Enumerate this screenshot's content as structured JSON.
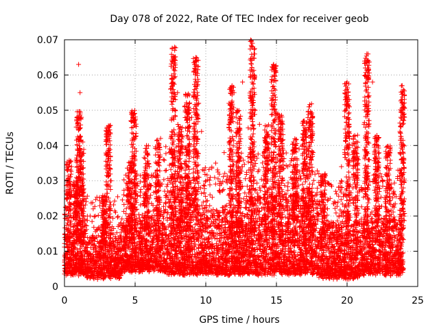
{
  "chart_data": {
    "type": "scatter",
    "title": "Day 078 of 2022, Rate Of TEC Index for receiver geob",
    "xlabel": "GPS time / hours",
    "ylabel": "ROTI / TECUs",
    "xlim": [
      0,
      25
    ],
    "ylim": [
      0,
      0.07
    ],
    "xticks": [
      "0",
      "5",
      "10",
      "15",
      "20",
      "25"
    ],
    "yticks": [
      "0",
      "0.01",
      "0.02",
      "0.03",
      "0.04",
      "0.05",
      "0.06",
      "0.07"
    ],
    "xtick_values": [
      0,
      5,
      10,
      15,
      20,
      25
    ],
    "ytick_values": [
      0,
      0.01,
      0.02,
      0.03,
      0.04,
      0.05,
      0.06,
      0.07
    ],
    "grid": true,
    "legend": "none",
    "marker": "plus",
    "series_color": "#ff0000",
    "points": [
      [
        0.1,
        0.008
      ],
      [
        0.2,
        0.011
      ],
      [
        0.3,
        0.006
      ],
      [
        0.4,
        0.018
      ],
      [
        0.5,
        0.034
      ],
      [
        0.6,
        0.029
      ],
      [
        0.7,
        0.012
      ],
      [
        0.8,
        0.009
      ],
      [
        0.9,
        0.022
      ],
      [
        1.0,
        0.063
      ],
      [
        1.1,
        0.055
      ],
      [
        1.2,
        0.048
      ],
      [
        1.3,
        0.041
      ],
      [
        1.4,
        0.014
      ],
      [
        1.6,
        0.01
      ],
      [
        1.8,
        0.007
      ],
      [
        2.0,
        0.012
      ],
      [
        2.2,
        0.009
      ],
      [
        2.5,
        0.008
      ],
      [
        2.7,
        0.024
      ],
      [
        2.9,
        0.021
      ],
      [
        3.1,
        0.044
      ],
      [
        3.2,
        0.038
      ],
      [
        3.3,
        0.03
      ],
      [
        3.5,
        0.011
      ],
      [
        3.8,
        0.009
      ],
      [
        4.0,
        0.014
      ],
      [
        4.2,
        0.026
      ],
      [
        4.5,
        0.031
      ],
      [
        4.7,
        0.047
      ],
      [
        4.8,
        0.049
      ],
      [
        5.0,
        0.042
      ],
      [
        5.2,
        0.018
      ],
      [
        5.5,
        0.013
      ],
      [
        5.8,
        0.04
      ],
      [
        6.0,
        0.034
      ],
      [
        6.2,
        0.02
      ],
      [
        6.5,
        0.025
      ],
      [
        6.8,
        0.042
      ],
      [
        7.0,
        0.036
      ],
      [
        7.3,
        0.029
      ],
      [
        7.5,
        0.056
      ],
      [
        7.7,
        0.062
      ],
      [
        7.8,
        0.067
      ],
      [
        8.0,
        0.055
      ],
      [
        8.2,
        0.045
      ],
      [
        8.5,
        0.051
      ],
      [
        8.7,
        0.038
      ],
      [
        9.0,
        0.048
      ],
      [
        9.2,
        0.063
      ],
      [
        9.3,
        0.065
      ],
      [
        9.5,
        0.052
      ],
      [
        9.7,
        0.044
      ],
      [
        10.0,
        0.03
      ],
      [
        10.3,
        0.026
      ],
      [
        10.7,
        0.035
      ],
      [
        11.0,
        0.027
      ],
      [
        11.3,
        0.038
      ],
      [
        11.7,
        0.047
      ],
      [
        12.0,
        0.055
      ],
      [
        12.2,
        0.05
      ],
      [
        12.6,
        0.058
      ],
      [
        13.0,
        0.045
      ],
      [
        13.3,
        0.069
      ],
      [
        13.5,
        0.05
      ],
      [
        13.8,
        0.046
      ],
      [
        14.2,
        0.041
      ],
      [
        14.5,
        0.037
      ],
      [
        14.8,
        0.063
      ],
      [
        15.1,
        0.049
      ],
      [
        15.4,
        0.04
      ],
      [
        15.8,
        0.034
      ],
      [
        16.2,
        0.041
      ],
      [
        16.6,
        0.039
      ],
      [
        17.0,
        0.045
      ],
      [
        17.3,
        0.051
      ],
      [
        17.6,
        0.038
      ],
      [
        18.0,
        0.032
      ],
      [
        18.4,
        0.03
      ],
      [
        18.8,
        0.025
      ],
      [
        19.2,
        0.027
      ],
      [
        19.6,
        0.034
      ],
      [
        19.9,
        0.053
      ],
      [
        20.0,
        0.058
      ],
      [
        20.1,
        0.049
      ],
      [
        20.4,
        0.04
      ],
      [
        20.8,
        0.036
      ],
      [
        21.2,
        0.046
      ],
      [
        21.4,
        0.066
      ],
      [
        21.5,
        0.062
      ],
      [
        21.8,
        0.058
      ],
      [
        22.1,
        0.042
      ],
      [
        22.5,
        0.03
      ],
      [
        22.9,
        0.038
      ],
      [
        23.3,
        0.027
      ],
      [
        23.6,
        0.033
      ],
      [
        23.8,
        0.048
      ],
      [
        23.9,
        0.057
      ],
      [
        24.0,
        0.051
      ],
      [
        24.0,
        0.035
      ]
    ],
    "bands": [
      {
        "x0": 0.0,
        "x1": 1.5,
        "ymin": 0.004,
        "ymax": 0.016,
        "density": 0.8
      },
      {
        "x0": 1.5,
        "x1": 4.0,
        "ymin": 0.003,
        "ymax": 0.014,
        "density": 0.72
      },
      {
        "x0": 4.0,
        "x1": 7.0,
        "ymin": 0.005,
        "ymax": 0.02,
        "density": 0.8
      },
      {
        "x0": 7.0,
        "x1": 9.5,
        "ymin": 0.004,
        "ymax": 0.028,
        "density": 0.9
      },
      {
        "x0": 9.5,
        "x1": 12.0,
        "ymin": 0.004,
        "ymax": 0.022,
        "density": 0.82
      },
      {
        "x0": 12.0,
        "x1": 15.0,
        "ymin": 0.004,
        "ymax": 0.026,
        "density": 0.9
      },
      {
        "x0": 15.0,
        "x1": 18.0,
        "ymin": 0.004,
        "ymax": 0.026,
        "density": 0.9
      },
      {
        "x0": 18.0,
        "x1": 21.0,
        "ymin": 0.003,
        "ymax": 0.018,
        "density": 0.8
      },
      {
        "x0": 21.0,
        "x1": 24.0,
        "ymin": 0.004,
        "ymax": 0.02,
        "density": 0.8
      }
    ],
    "spikes": [
      [
        0.3,
        0.036
      ],
      [
        0.8,
        0.03
      ],
      [
        1.0,
        0.05
      ],
      [
        1.2,
        0.04
      ],
      [
        2.8,
        0.026
      ],
      [
        3.1,
        0.046
      ],
      [
        4.6,
        0.036
      ],
      [
        4.9,
        0.05
      ],
      [
        5.8,
        0.04
      ],
      [
        6.6,
        0.042
      ],
      [
        7.7,
        0.068
      ],
      [
        8.2,
        0.046
      ],
      [
        8.7,
        0.055
      ],
      [
        9.3,
        0.065
      ],
      [
        11.8,
        0.057
      ],
      [
        12.3,
        0.05
      ],
      [
        13.3,
        0.07
      ],
      [
        14.3,
        0.046
      ],
      [
        14.8,
        0.063
      ],
      [
        15.3,
        0.049
      ],
      [
        16.3,
        0.042
      ],
      [
        17.0,
        0.047
      ],
      [
        17.4,
        0.052
      ],
      [
        18.3,
        0.032
      ],
      [
        20.0,
        0.058
      ],
      [
        20.6,
        0.043
      ],
      [
        21.4,
        0.066
      ],
      [
        22.1,
        0.043
      ],
      [
        22.9,
        0.04
      ],
      [
        23.9,
        0.057
      ]
    ]
  }
}
